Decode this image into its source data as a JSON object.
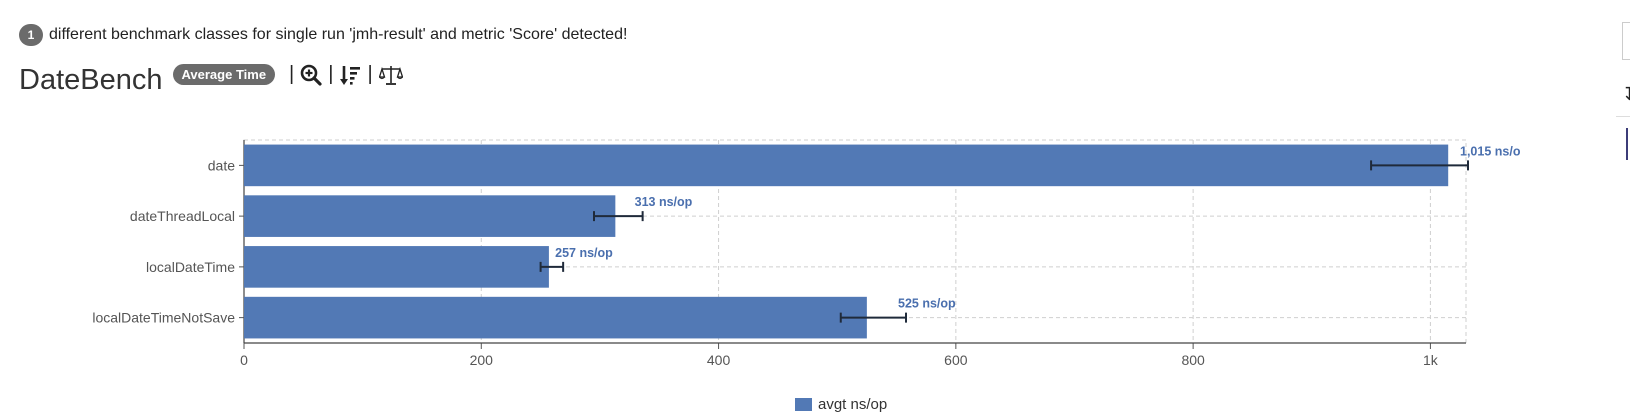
{
  "notice": {
    "count": "1",
    "text": "different benchmark classes for single run 'jmh-result' and metric 'Score' detected!"
  },
  "header": {
    "title": "DateBench",
    "mode_badge": "Average Time",
    "separator": "|"
  },
  "toolbar": {
    "icons": [
      "zoom-in-icon",
      "sort-descending-icon",
      "compare-scale-icon"
    ]
  },
  "legend": {
    "label": "avgt ns/op",
    "color": "#5279b5"
  },
  "chart_data": {
    "type": "bar",
    "orientation": "horizontal",
    "categories": [
      "date",
      "dateThreadLocal",
      "localDateTime",
      "localDateTimeNotSave"
    ],
    "series": [
      {
        "name": "avgt ns/op",
        "values": [
          1015,
          313,
          257,
          525
        ]
      }
    ],
    "errors": [
      [
        950,
        1078
      ],
      [
        295,
        336
      ],
      [
        250,
        269
      ],
      [
        503,
        558
      ]
    ],
    "data_labels": [
      "1,015 ns/o",
      "313 ns/op",
      "257 ns/op",
      "525 ns/op"
    ],
    "xlim": [
      0,
      1030
    ],
    "xticks": [
      0,
      200,
      400,
      600,
      800,
      1000
    ],
    "xtick_labels": [
      "0",
      "200",
      "400",
      "600",
      "800",
      "1k"
    ],
    "grid": true,
    "legend_position": "bottom",
    "bar_color": "#5279b5",
    "label_color": "#4a6fae"
  }
}
